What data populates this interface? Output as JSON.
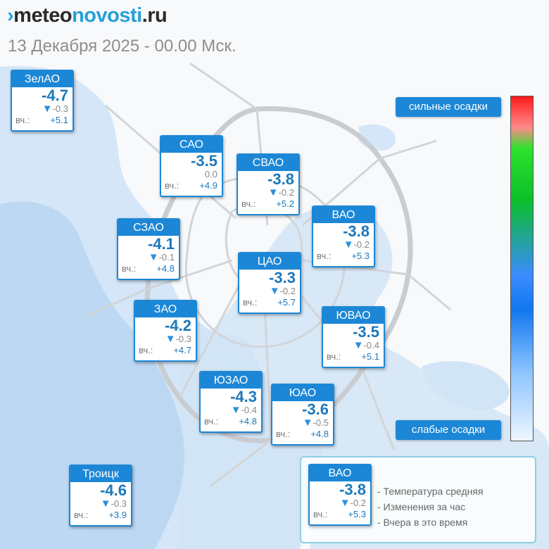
{
  "site": {
    "logo_mark": "›",
    "logo_part1": "meteo",
    "logo_part2": "novosti",
    "logo_part3": ".ru"
  },
  "datetime": "13 Декабря 2025 - 00.00 Мск.",
  "yesterday_label": "вч.:",
  "districts": [
    {
      "name": "ЗелАО",
      "temp": "-4.7",
      "change": "-0.3",
      "change_dir": "down",
      "yesterday": "+5.1"
    },
    {
      "name": "САО",
      "temp": "-3.5",
      "change": "0.0",
      "change_dir": "none",
      "yesterday": "+4.9"
    },
    {
      "name": "СВАО",
      "temp": "-3.8",
      "change": "-0.2",
      "change_dir": "down",
      "yesterday": "+5.2"
    },
    {
      "name": "ВАО",
      "temp": "-3.8",
      "change": "-0.2",
      "change_dir": "down",
      "yesterday": "+5.3"
    },
    {
      "name": "СЗАО",
      "temp": "-4.1",
      "change": "-0.1",
      "change_dir": "down",
      "yesterday": "+4.8"
    },
    {
      "name": "ЦАО",
      "temp": "-3.3",
      "change": "-0.2",
      "change_dir": "down",
      "yesterday": "+5.7"
    },
    {
      "name": "ЗАО",
      "temp": "-4.2",
      "change": "-0.3",
      "change_dir": "down",
      "yesterday": "+4.7"
    },
    {
      "name": "ЮВАО",
      "temp": "-3.5",
      "change": "-0.4",
      "change_dir": "down",
      "yesterday": "+5.1"
    },
    {
      "name": "ЮЗАО",
      "temp": "-4.3",
      "change": "-0.4",
      "change_dir": "down",
      "yesterday": "+4.8"
    },
    {
      "name": "ЮАО",
      "temp": "-3.6",
      "change": "-0.5",
      "change_dir": "down",
      "yesterday": "+4.8"
    },
    {
      "name": "Троицк",
      "temp": "-4.6",
      "change": "-0.3",
      "change_dir": "down",
      "yesterday": "+3.9"
    }
  ],
  "precip_scale": {
    "top_label": "сильные осадки",
    "bottom_label": "слабые осадки"
  },
  "legend": {
    "example": {
      "name": "ВАО",
      "temp": "-3.8",
      "change": "-0.2",
      "change_dir": "down",
      "yesterday": "+5.3"
    },
    "lines": [
      "- Температура средняя",
      "- Изменения за час",
      "- Вчера в это время"
    ]
  },
  "colors": {
    "accent": "#1c87d6",
    "temp_text": "#1b78bb",
    "change_icon": "#2a8fdc"
  },
  "icons": {
    "change_down": "triangle-down-icon"
  }
}
